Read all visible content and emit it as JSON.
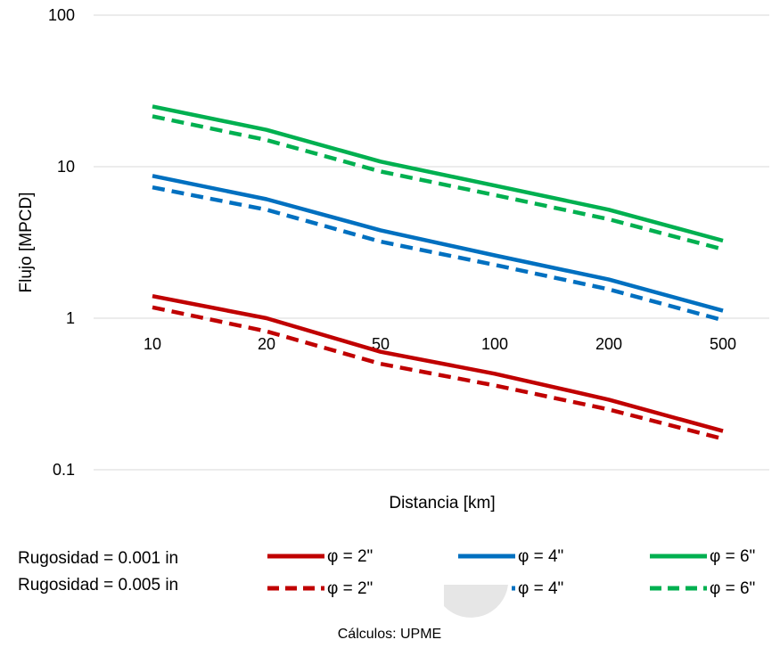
{
  "chart_data": {
    "type": "line",
    "xlabel": "Distancia [km]",
    "ylabel": "Flujo [MPCD]",
    "x_ticks": [
      "10",
      "20",
      "50",
      "100",
      "200",
      "500"
    ],
    "y_ticks": [
      "100",
      "10",
      "1",
      "0.1"
    ],
    "y_scale": "log",
    "ylim": [
      0.1,
      100
    ],
    "grid": "horizontal",
    "x": [
      10,
      20,
      50,
      100,
      200,
      500
    ],
    "series": [
      {
        "name": "φ = 2\"",
        "roughness": "Rugosidad = 0.001 in",
        "color": "#c00000",
        "dashed": false,
        "values": [
          1.4,
          1.0,
          0.6,
          0.43,
          0.29,
          0.18
        ]
      },
      {
        "name": "φ = 2\"",
        "roughness": "Rugosidad = 0.005 in",
        "color": "#c00000",
        "dashed": true,
        "values": [
          1.18,
          0.82,
          0.5,
          0.36,
          0.25,
          0.16
        ]
      },
      {
        "name": "φ = 4\"",
        "roughness": "Rugosidad = 0.001 in",
        "color": "#0070c0",
        "dashed": false,
        "values": [
          8.7,
          6.1,
          3.8,
          2.6,
          1.8,
          1.12
        ]
      },
      {
        "name": "φ = 4\"",
        "roughness": "Rugosidad = 0.005 in",
        "color": "#0070c0",
        "dashed": true,
        "values": [
          7.3,
          5.2,
          3.2,
          2.25,
          1.55,
          0.97
        ]
      },
      {
        "name": "φ = 6\"",
        "roughness": "Rugosidad = 0.001 in",
        "color": "#00b050",
        "dashed": false,
        "values": [
          25,
          17.5,
          10.8,
          7.5,
          5.2,
          3.25
        ]
      },
      {
        "name": "φ = 6\"",
        "roughness": "Rugosidad = 0.005 in",
        "color": "#00b050",
        "dashed": true,
        "values": [
          21.5,
          15,
          9.3,
          6.5,
          4.5,
          2.85
        ]
      }
    ],
    "legend": {
      "row_labels": [
        "Rugosidad = 0.001 in",
        "Rugosidad = 0.005 in"
      ],
      "entries": [
        "φ  =  2\"",
        "φ  =  4\"",
        "φ  =  6\""
      ],
      "placement": "bottom"
    },
    "source": "Cálculos: UPME"
  }
}
